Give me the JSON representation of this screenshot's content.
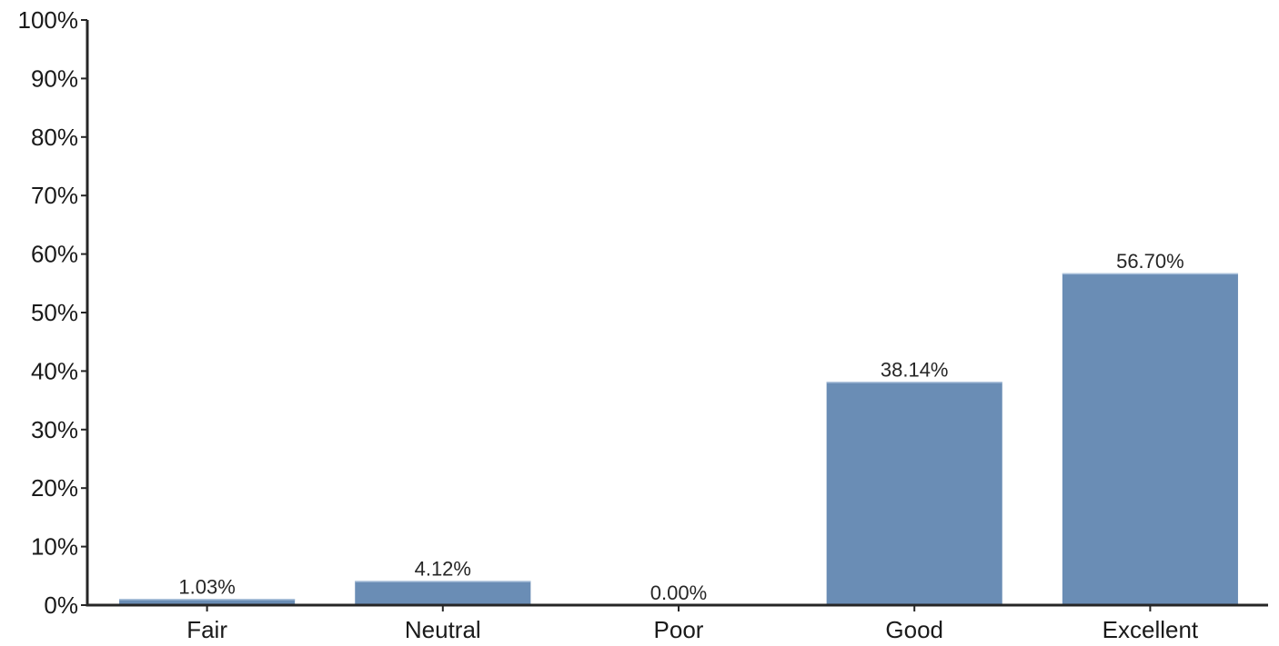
{
  "chart_data": {
    "type": "bar",
    "categories": [
      "Fair",
      "Neutral",
      "Poor",
      "Good",
      "Excellent"
    ],
    "values": [
      1.03,
      4.12,
      0.0,
      38.14,
      56.7
    ],
    "data_labels": [
      "1.03%",
      "4.12%",
      "0.00%",
      "38.14%",
      "56.70%"
    ],
    "ylim": [
      0,
      100
    ],
    "yticks": [
      0,
      10,
      20,
      30,
      40,
      50,
      60,
      70,
      80,
      90,
      100
    ],
    "ytick_labels": [
      "0%",
      "10%",
      "20%",
      "30%",
      "40%",
      "50%",
      "60%",
      "70%",
      "80%",
      "90%",
      "100%"
    ],
    "title": "",
    "xlabel": "",
    "ylabel": "",
    "grid": false,
    "legend": "none",
    "bar_color": "#6a8db5",
    "axis_color": "#262626"
  }
}
